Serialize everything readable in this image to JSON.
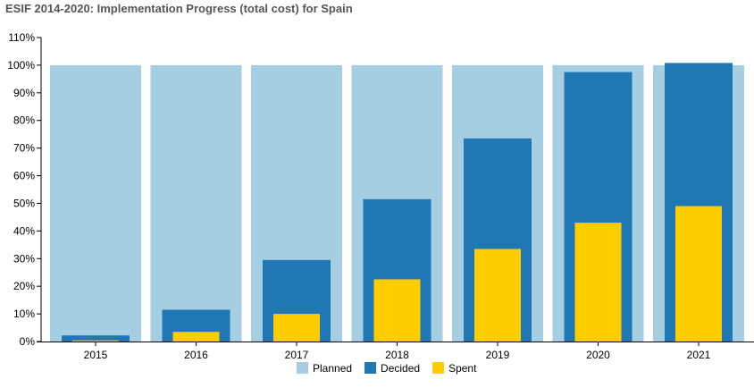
{
  "chart_data": {
    "type": "bar",
    "title": "ESIF 2014-2020: Implementation Progress (total cost) for Spain",
    "xlabel": "",
    "ylabel": "",
    "categories": [
      "2015",
      "2016",
      "2017",
      "2018",
      "2019",
      "2020",
      "2021"
    ],
    "series": [
      {
        "name": "Planned",
        "color": "#a6cee3",
        "values": [
          100,
          100,
          100,
          100,
          100,
          100,
          100
        ]
      },
      {
        "name": "Decided",
        "color": "#1f78b4",
        "values": [
          2.2,
          11.5,
          29.5,
          51.5,
          73.5,
          97.5,
          100.8
        ]
      },
      {
        "name": "Spent",
        "color": "#ffcc00",
        "values": [
          0.4,
          3.5,
          10,
          22.5,
          33.5,
          43,
          49
        ]
      }
    ],
    "ylim": [
      0,
      110
    ],
    "yticks": [
      0,
      10,
      20,
      30,
      40,
      50,
      60,
      70,
      80,
      90,
      100,
      110
    ],
    "ytick_format": "percent",
    "bar_mode": "overlay",
    "grid": false,
    "legend_position": "bottom"
  }
}
